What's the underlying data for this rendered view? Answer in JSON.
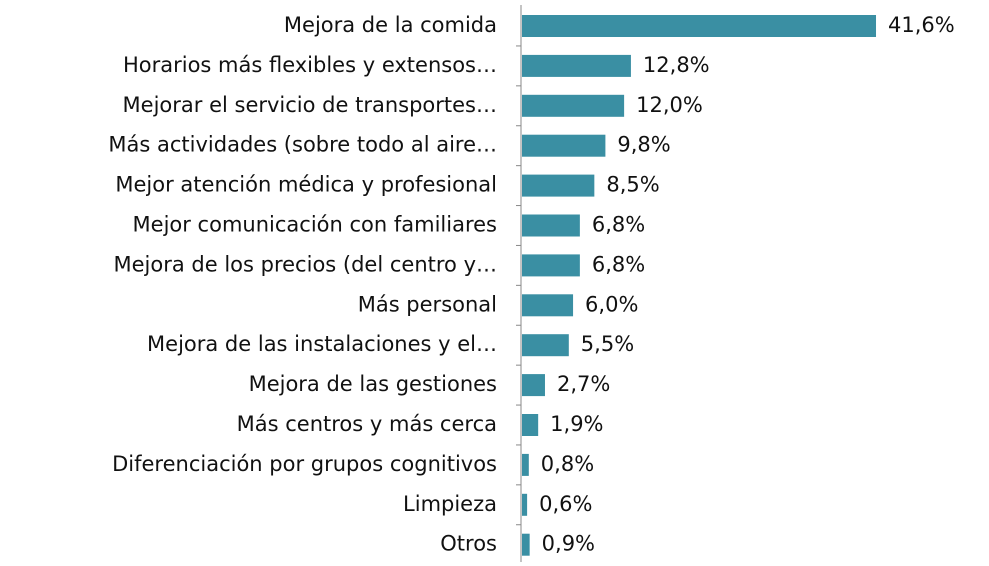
{
  "chart_data": {
    "type": "bar",
    "orientation": "horizontal",
    "categories": [
      "Mejora de la comida",
      "Horarios más flexibles y extensos…",
      "Mejorar el servicio de transportes…",
      "Más actividades (sobre todo al aire…",
      "Mejor atención médica y profesional",
      "Mejor comunicación con familiares",
      "Mejora de los precios (del centro y…",
      "Más personal",
      "Mejora de las instalaciones y el…",
      "Mejora de las gestiones",
      "Más centros y más cerca",
      "Diferenciación por grupos cognitivos",
      "Limpieza",
      "Otros"
    ],
    "values": [
      41.6,
      12.8,
      12.0,
      9.8,
      8.5,
      6.8,
      6.8,
      6.0,
      5.5,
      2.7,
      1.9,
      0.8,
      0.6,
      0.9
    ],
    "value_labels": [
      "41,6%",
      "12,8%",
      "12,0%",
      "9,8%",
      "8,5%",
      "6,8%",
      "6,8%",
      "6,0%",
      "5,5%",
      "2,7%",
      "1,9%",
      "0,8%",
      "0,6%",
      "0,9%"
    ],
    "color": "#3a8fa3"
  }
}
